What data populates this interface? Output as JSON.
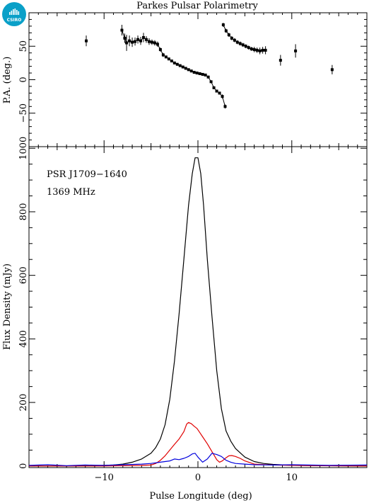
{
  "logo": {
    "text": "CSIRO",
    "color": "#0aa0c8"
  },
  "chart_data": [
    {
      "type": "scatter",
      "title": "Parkes Pulsar Polarimetry",
      "xlabel": "",
      "ylabel": "P.A. (deg.)",
      "xlim": [
        -18,
        18
      ],
      "ylim": [
        -100,
        100
      ],
      "yticks": [
        -50,
        0,
        50
      ],
      "series": [
        {
          "color": "#000000",
          "points": [
            [
              -11.9,
              58,
              8
            ],
            [
              -8.1,
              74,
              8
            ],
            [
              -7.8,
              62,
              7
            ],
            [
              -7.6,
              55,
              12
            ],
            [
              -7.3,
              58,
              8
            ],
            [
              -7.0,
              56,
              7
            ],
            [
              -6.7,
              57,
              6
            ],
            [
              -6.4,
              60,
              6
            ],
            [
              -6.1,
              58,
              6
            ],
            [
              -5.8,
              63,
              7
            ],
            [
              -5.5,
              60,
              5
            ],
            [
              -5.2,
              57,
              5
            ],
            [
              -4.9,
              56,
              4
            ],
            [
              -4.6,
              55,
              4
            ],
            [
              -4.3,
              53,
              4
            ],
            [
              -4.0,
              45,
              3
            ],
            [
              -3.7,
              37,
              3
            ],
            [
              -3.4,
              34,
              2
            ],
            [
              -3.1,
              31,
              2
            ],
            [
              -2.8,
              28,
              2
            ],
            [
              -2.5,
              25,
              2
            ],
            [
              -2.2,
              23,
              2
            ],
            [
              -1.9,
              21,
              2
            ],
            [
              -1.6,
              19,
              2
            ],
            [
              -1.3,
              17,
              2
            ],
            [
              -1.0,
              15,
              2
            ],
            [
              -0.7,
              13,
              2
            ],
            [
              -0.4,
              11,
              2
            ],
            [
              -0.1,
              10,
              2
            ],
            [
              0.2,
              9,
              2
            ],
            [
              0.5,
              8,
              2
            ],
            [
              0.8,
              7,
              2
            ],
            [
              1.1,
              4,
              2
            ],
            [
              1.4,
              -3,
              2
            ],
            [
              1.7,
              -12,
              2
            ],
            [
              2.0,
              -17,
              2
            ],
            [
              2.3,
              -20,
              2
            ],
            [
              2.6,
              -25,
              3
            ],
            [
              2.9,
              -40,
              3
            ]
          ]
        },
        {
          "color": "#000000",
          "points": [
            [
              2.7,
              82,
              3
            ],
            [
              3.0,
              73,
              3
            ],
            [
              3.3,
              67,
              3
            ],
            [
              3.6,
              62,
              3
            ],
            [
              3.9,
              59,
              3
            ],
            [
              4.2,
              56,
              3
            ],
            [
              4.5,
              54,
              3
            ],
            [
              4.8,
              52,
              3
            ],
            [
              5.1,
              50,
              3
            ],
            [
              5.4,
              48,
              3
            ],
            [
              5.7,
              46,
              3
            ],
            [
              6.0,
              45,
              4
            ],
            [
              6.3,
              44,
              4
            ],
            [
              6.6,
              43,
              5
            ],
            [
              6.9,
              44,
              5
            ],
            [
              7.2,
              44,
              6
            ],
            [
              8.8,
              29,
              8
            ],
            [
              10.4,
              43,
              10
            ],
            [
              14.3,
              15,
              7
            ]
          ]
        }
      ]
    },
    {
      "type": "line",
      "title": "",
      "xlabel": "Pulse Longitude (deg)",
      "ylabel": "Flux Density (mJy)",
      "xlim": [
        -18,
        18
      ],
      "ylim": [
        -5,
        1005
      ],
      "xticks": [
        -10,
        0,
        10
      ],
      "yticks": [
        0,
        200,
        400,
        600,
        800,
        1000
      ],
      "annotations": [
        "PSR J1709−1640",
        "1369 MHz"
      ],
      "series": [
        {
          "color": "#000000",
          "x": [
            -18,
            -14,
            -11,
            -9,
            -8,
            -7,
            -6,
            -5,
            -4.5,
            -4,
            -3.5,
            -3,
            -2.5,
            -2,
            -1.5,
            -1,
            -0.6,
            -0.3,
            0,
            0.3,
            0.6,
            1,
            1.5,
            2,
            2.5,
            3,
            3.5,
            4,
            5,
            6,
            7,
            8,
            10,
            13,
            18
          ],
          "y": [
            0,
            0,
            1,
            3,
            6,
            12,
            22,
            40,
            58,
            85,
            130,
            210,
            330,
            480,
            650,
            820,
            920,
            970,
            970,
            920,
            820,
            650,
            470,
            300,
            180,
            110,
            78,
            55,
            28,
            14,
            8,
            5,
            2,
            1,
            0
          ]
        },
        {
          "color": "#e00000",
          "x": [
            -18,
            -10,
            -8,
            -6,
            -5,
            -4.5,
            -4,
            -3.5,
            -3,
            -2.5,
            -2,
            -1.5,
            -1.2,
            -1,
            -0.7,
            -0.4,
            -0.1,
            0.2,
            0.5,
            1,
            1.5,
            2,
            2.3,
            2.6,
            3,
            3.3,
            3.6,
            4,
            4.5,
            5,
            6,
            8,
            12,
            18
          ],
          "y": [
            0,
            0,
            1,
            2,
            3,
            8,
            18,
            32,
            50,
            68,
            85,
            108,
            132,
            137,
            133,
            125,
            118,
            105,
            92,
            70,
            45,
            20,
            12,
            16,
            26,
            32,
            33,
            30,
            24,
            16,
            6,
            3,
            1,
            0
          ]
        },
        {
          "color": "#0000dd",
          "x": [
            -18,
            -16,
            -14,
            -12,
            -10,
            -8,
            -6,
            -5,
            -4,
            -3.5,
            -3,
            -2.5,
            -2,
            -1.5,
            -1,
            -0.6,
            -0.3,
            0,
            0.5,
            1,
            1.5,
            2,
            2.5,
            3,
            3.5,
            4,
            5,
            6,
            8,
            10,
            14,
            18
          ],
          "y": [
            2,
            4,
            1,
            3,
            2,
            4,
            6,
            8,
            12,
            14,
            16,
            22,
            20,
            24,
            30,
            38,
            40,
            28,
            12,
            22,
            40,
            36,
            30,
            18,
            12,
            8,
            6,
            4,
            3,
            4,
            2,
            3
          ]
        }
      ]
    }
  ]
}
